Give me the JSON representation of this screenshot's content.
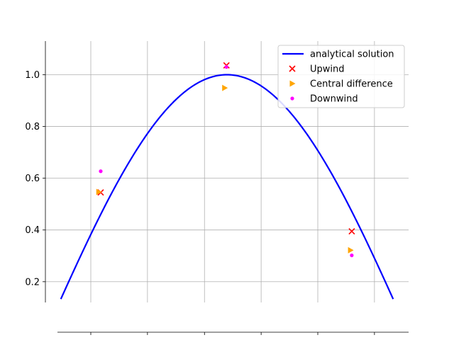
{
  "chart_data": {
    "type": "line",
    "title": "",
    "xlabel": "",
    "ylabel": "",
    "xlim": [
      0,
      1
    ],
    "ylim": [
      0.12,
      1.13
    ],
    "grid": true,
    "yticks": [
      0.2,
      0.4,
      0.6,
      0.8,
      1.0
    ],
    "ytick_labels": [
      "0.2",
      "0.4",
      "0.6",
      "0.8",
      "1.0"
    ],
    "xticks": [
      0.125,
      0.281,
      0.438,
      0.594,
      0.75,
      0.906
    ],
    "legend_position": "upper right",
    "series": [
      {
        "name": "analytical solution",
        "kind": "line",
        "color": "#0000ff",
        "function": "sin(pi*x)",
        "x_range": [
          0.0425,
          0.9575
        ]
      },
      {
        "name": "Upwind",
        "kind": "scatter",
        "marker": "x",
        "color": "#ff0000",
        "x": [
          0.1523,
          0.4985,
          0.8435
        ],
        "y": [
          0.545,
          1.036,
          0.395
        ]
      },
      {
        "name": "Central difference",
        "kind": "scatter",
        "marker": "triangle-right",
        "color": "#ffa500",
        "x": [
          0.147,
          0.4935,
          0.84
        ],
        "y": [
          0.547,
          0.949,
          0.322
        ]
      },
      {
        "name": "Downwind",
        "kind": "scatter",
        "marker": "dot",
        "color": "#ff00ff",
        "x": [
          0.1523,
          0.4985,
          0.8435
        ],
        "y": [
          0.627,
          1.03,
          0.302
        ]
      }
    ]
  }
}
